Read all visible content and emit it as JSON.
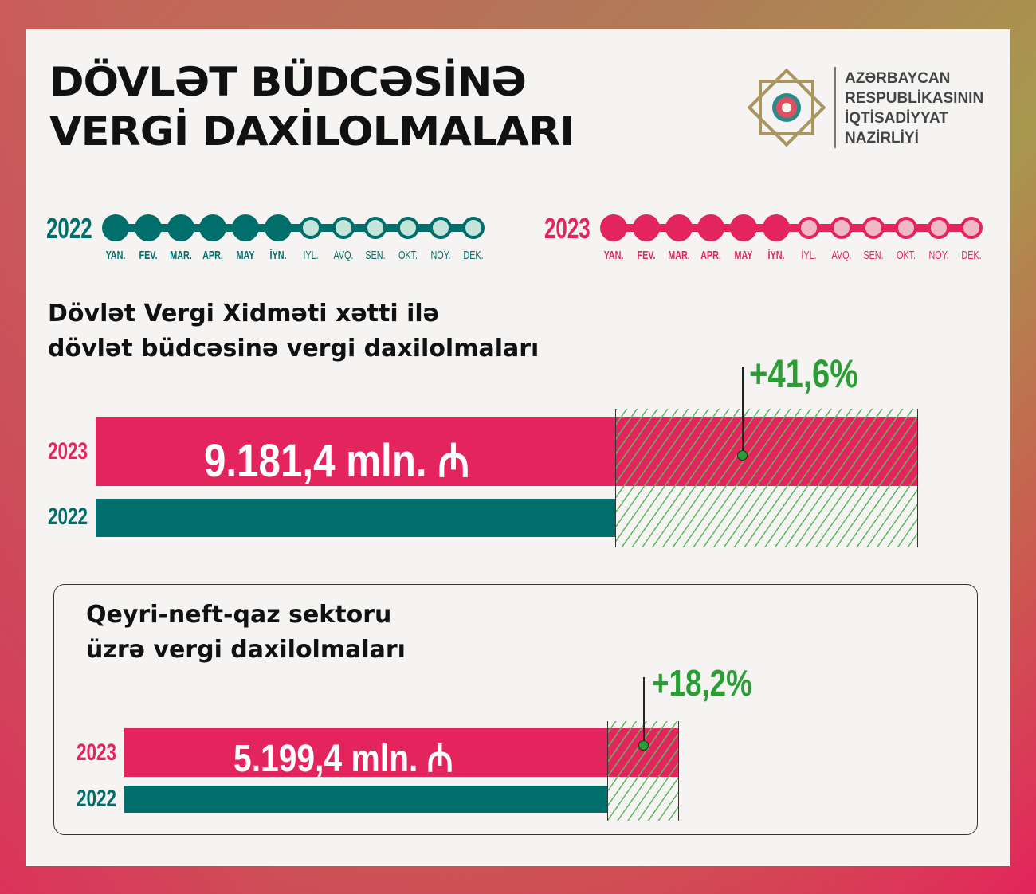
{
  "title": [
    "DÖVLƏT BÜDCƏSİNƏ",
    "VERGİ DAXİLOLMALARI"
  ],
  "organization": [
    "AZƏRBAYCAN",
    "RESPUBLİKASININ",
    "İQTİSADİYYAT",
    "NAZİRLİYİ"
  ],
  "timeline": {
    "months": [
      "YAN.",
      "FEV.",
      "MAR.",
      "APR.",
      "MAY",
      "İYN.",
      "İYL.",
      "AVQ.",
      "SEN.",
      "OKT.",
      "NOY.",
      "DEK."
    ],
    "active_months": 6,
    "years": [
      {
        "label": "2022",
        "color": "#006e6a",
        "light": "#c5e4da"
      },
      {
        "label": "2023",
        "color": "#e4245c",
        "light": "#f0b8c4"
      }
    ]
  },
  "colors": {
    "y2023": "#e4245c",
    "y2022": "#006e6a",
    "growth": "#2a9e34"
  },
  "chart_data": [
    {
      "type": "bar",
      "title": "Dövlət Vergi Xidməti xətti ilə dövlət büdcəsinə vergi daxilolmaları",
      "title_lines": [
        "Dövlət Vergi Xidməti xətti ilə",
        "dövlət büdcəsinə vergi daxilolmaları"
      ],
      "categories": [
        "2023",
        "2022"
      ],
      "value_2023_label": "9.181,4 mln. ₼",
      "value_2023": 9181.4,
      "unit": "mln. ₼",
      "growth": "+41,6%"
    },
    {
      "type": "bar",
      "title": "Qeyri-neft-qaz sektoru üzrə vergi daxilolmaları",
      "title_lines": [
        "Qeyri-neft-qaz sektoru",
        "üzrə vergi daxilolmaları"
      ],
      "categories": [
        "2023",
        "2022"
      ],
      "value_2023_label": "5.199,4 mln. ₼",
      "value_2023": 5199.4,
      "unit": "mln. ₼",
      "growth": "+18,2%"
    }
  ]
}
